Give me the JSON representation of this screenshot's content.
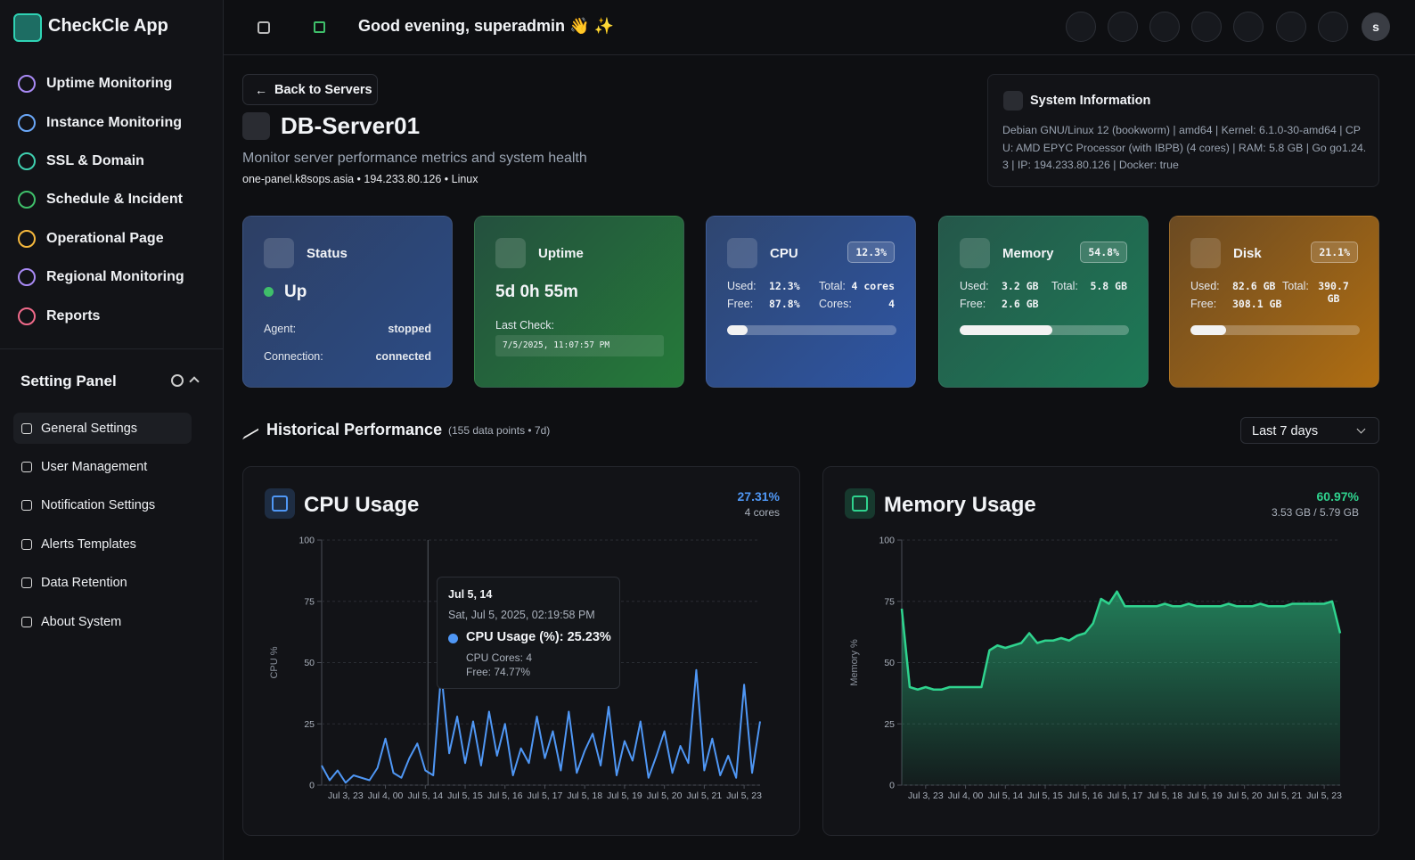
{
  "app": {
    "name": "CheckCle App"
  },
  "header": {
    "greeting": "Good evening, superadmin 👋 ✨",
    "avatar": "s"
  },
  "nav": [
    "Uptime Monitoring",
    "Instance Monitoring",
    "SSL & Domain",
    "Schedule & Incident",
    "Operational Page",
    "Regional Monitoring",
    "Reports"
  ],
  "settings": {
    "title": "Setting Panel",
    "items": [
      "General Settings",
      "User Management",
      "Notification Settings",
      "Alerts Templates",
      "Data Retention",
      "About System"
    ]
  },
  "page": {
    "back": "Back to Servers",
    "title": "DB-Server01",
    "subtitle": "Monitor server performance metrics and system health",
    "meta": "one-panel.k8sops.asia • 194.233.80.126 • Linux"
  },
  "sysinfo": {
    "title": "System Information",
    "text": "Debian GNU/Linux 12 (bookworm) | amd64 | Kernel: 6.1.0-30-amd64 | CPU: AMD EPYC Processor (with IBPB) (4 cores) | RAM: 5.8 GB | Go go1.24.3 | IP: 194.233.80.126 | Docker: true"
  },
  "cards": {
    "status": {
      "title": "Status",
      "value": "Up",
      "agent_label": "Agent:",
      "agent": "stopped",
      "conn_label": "Connection:",
      "conn": "connected"
    },
    "uptime": {
      "title": "Uptime",
      "value": "5d 0h 55m",
      "check_label": "Last Check:",
      "check": "7/5/2025, 11:07:57 PM"
    },
    "cpu": {
      "title": "CPU",
      "badge": "12.3%",
      "usage": 12.3,
      "used_label": "Used:",
      "used": "12.3%",
      "total_label": "Total:",
      "total": "4 cores",
      "free_label": "Free:",
      "free": "87.8%",
      "cores_label": "Cores:",
      "cores": "4"
    },
    "memory": {
      "title": "Memory",
      "badge": "54.8%",
      "usage": 54.8,
      "used_label": "Used:",
      "used": "3.2 GB",
      "total_label": "Total:",
      "total": "5.8 GB",
      "free_label": "Free:",
      "free": "2.6 GB"
    },
    "disk": {
      "title": "Disk",
      "badge": "21.1%",
      "usage": 21.1,
      "used_label": "Used:",
      "used": "82.6 GB",
      "total_label": "Total:",
      "total": "390.7 GB",
      "free_label": "Free:",
      "free": "308.1 GB"
    }
  },
  "history": {
    "title": "Historical Performance",
    "note": "(155 data points • 7d)",
    "range": "Last 7 days"
  },
  "chart_data": [
    {
      "type": "line",
      "title": "CPU Usage",
      "stat": "27.31%",
      "sub": "4 cores",
      "y_label": "CPU %",
      "color": "#4f97f5",
      "grid": true,
      "ylim": [
        0,
        100
      ],
      "yticks": [
        0,
        25,
        50,
        75,
        100
      ],
      "categories": [
        null,
        null,
        null,
        "Jul 3, 23",
        null,
        null,
        null,
        null,
        "Jul 4, 00",
        null,
        null,
        null,
        null,
        "Jul 5, 14",
        null,
        null,
        null,
        null,
        "Jul 5, 15",
        null,
        null,
        null,
        null,
        "Jul 5, 16",
        null,
        null,
        null,
        null,
        "Jul 5, 17",
        null,
        null,
        null,
        null,
        "Jul 5, 18",
        null,
        null,
        null,
        null,
        "Jul 5, 19",
        null,
        null,
        null,
        null,
        "Jul 5, 20",
        null,
        null,
        null,
        null,
        "Jul 5, 21",
        null,
        null,
        null,
        null,
        "Jul 5, 23",
        null,
        null
      ],
      "values": [
        8,
        2,
        6,
        1,
        4,
        3,
        2,
        7,
        19,
        5,
        3,
        11,
        17,
        6,
        4,
        46,
        13,
        28,
        9,
        26,
        8,
        30,
        12,
        25,
        4,
        15,
        9,
        28,
        11,
        22,
        6,
        30,
        5,
        14,
        21,
        8,
        32,
        4,
        18,
        10,
        26,
        3,
        12,
        22,
        5,
        16,
        9,
        47,
        6,
        19,
        4,
        12,
        3,
        41,
        5,
        26
      ],
      "tooltip": {
        "title": "Jul 5, 14",
        "date": "Sat, Jul 5, 2025, 02:19:58 PM",
        "main": "CPU Usage (%): 25.23%",
        "line1": "CPU Cores: 4",
        "line2": "Free: 74.77%"
      }
    },
    {
      "type": "area",
      "title": "Memory Usage",
      "stat": "60.97%",
      "sub": "3.53 GB / 5.79 GB",
      "y_label": "Memory %",
      "color": "#2fd38e",
      "grid": true,
      "ylim": [
        0,
        100
      ],
      "yticks": [
        0,
        25,
        50,
        75,
        100
      ],
      "categories": [
        null,
        null,
        null,
        "Jul 3, 23",
        null,
        null,
        null,
        null,
        "Jul 4, 00",
        null,
        null,
        null,
        null,
        "Jul 5, 14",
        null,
        null,
        null,
        null,
        "Jul 5, 15",
        null,
        null,
        null,
        null,
        "Jul 5, 16",
        null,
        null,
        null,
        null,
        "Jul 5, 17",
        null,
        null,
        null,
        null,
        "Jul 5, 18",
        null,
        null,
        null,
        null,
        "Jul 5, 19",
        null,
        null,
        null,
        null,
        "Jul 5, 20",
        null,
        null,
        null,
        null,
        "Jul 5, 21",
        null,
        null,
        null,
        null,
        "Jul 5, 23",
        null,
        null
      ],
      "values": [
        72,
        40,
        39,
        40,
        39,
        39,
        40,
        40,
        40,
        40,
        40,
        55,
        57,
        56,
        57,
        58,
        62,
        58,
        59,
        59,
        60,
        59,
        61,
        62,
        66,
        76,
        74,
        79,
        73,
        73,
        73,
        73,
        73,
        74,
        73,
        73,
        74,
        73,
        73,
        73,
        73,
        74,
        73,
        73,
        73,
        74,
        73,
        73,
        73,
        74,
        74,
        74,
        74,
        74,
        75,
        62
      ]
    }
  ]
}
